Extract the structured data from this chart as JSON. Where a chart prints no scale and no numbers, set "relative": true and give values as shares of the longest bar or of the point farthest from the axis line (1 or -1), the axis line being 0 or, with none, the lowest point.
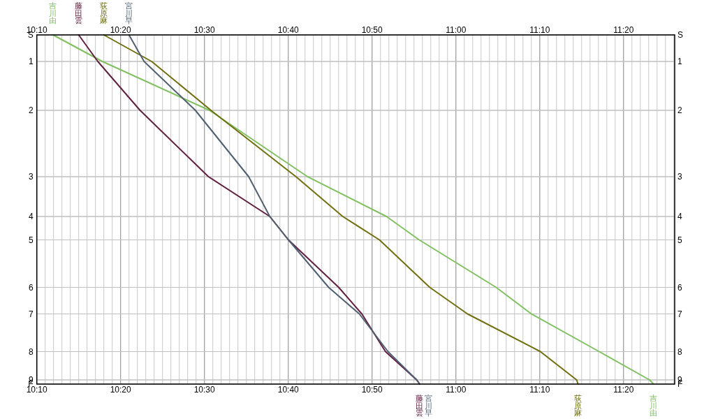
{
  "chart_data": {
    "type": "line",
    "grid": true,
    "relative": true,
    "xlim": [
      10.1667,
      11.435
    ],
    "xticks": [
      {
        "value": 10.1667,
        "label": "10:10"
      },
      {
        "value": 10.3333,
        "label": "10:20"
      },
      {
        "value": 10.5,
        "label": "10:30"
      },
      {
        "value": 10.6667,
        "label": "10:40"
      },
      {
        "value": 10.8333,
        "label": "10:50"
      },
      {
        "value": 11,
        "label": "11:00"
      },
      {
        "value": 11.1667,
        "label": "11:10"
      },
      {
        "value": 11.3333,
        "label": "11:20"
      }
    ],
    "x2lim": [
      10.1667,
      11.435
    ],
    "x2ticks": [
      {
        "value": 10.1667,
        "label": "10:10"
      },
      {
        "value": 10.3333,
        "label": "10:20"
      },
      {
        "value": 10.5,
        "label": "10:30"
      },
      {
        "value": 10.6667,
        "label": "10:40"
      },
      {
        "value": 10.8333,
        "label": "10:50"
      },
      {
        "value": 11,
        "label": "11:00"
      },
      {
        "value": 11.1667,
        "label": "11:10"
      },
      {
        "value": 11.3333,
        "label": "11:20"
      }
    ],
    "annotations": [
      "S",
      "1",
      "2",
      "3",
      "4",
      "5",
      "6",
      "7",
      "8",
      "9",
      "F",
      "S",
      "1",
      "2",
      "3",
      "4",
      "5",
      "6",
      "7",
      "8",
      "9",
      "F"
    ],
    "series": [
      {
        "name": "吉川由",
        "color": "#80c060",
        "x": [
          10.199,
          10.297,
          10.51,
          10.705,
          10.862,
          10.927,
          11.08,
          11.15,
          11.285,
          11.385,
          11.393
        ],
        "values": [
          0,
          -0.076,
          -0.216,
          -0.406,
          -0.52,
          -0.587,
          -0.723,
          -0.799,
          -0.907,
          -0.988,
          -1
        ]
      },
      {
        "name": "藤田雲",
        "color": "#602040",
        "x": [
          10.25,
          10.288,
          10.372,
          10.508,
          10.63,
          10.667,
          10.767,
          10.813,
          10.86,
          10.922,
          10.928
        ],
        "values": [
          0,
          -0.076,
          -0.216,
          -0.406,
          -0.52,
          -0.587,
          -0.723,
          -0.799,
          -0.907,
          -0.988,
          -1
        ]
      },
      {
        "name": "荻原麻",
        "color": "#707010",
        "x": [
          10.3,
          10.395,
          10.513,
          10.682,
          10.775,
          10.848,
          10.948,
          11.023,
          11.168,
          11.24,
          11.243
        ],
        "values": [
          0,
          -0.076,
          -0.216,
          -0.406,
          -0.52,
          -0.587,
          -0.723,
          -0.799,
          -0.907,
          -0.988,
          -1
        ]
      },
      {
        "name": "宮川早",
        "color": "#506070",
        "x": [
          10.35,
          10.38,
          10.482,
          10.588,
          10.63,
          10.667,
          10.747,
          10.808,
          10.865,
          10.922,
          10.928
        ],
        "values": [
          0,
          -0.076,
          -0.216,
          -0.406,
          -0.52,
          -0.587,
          -0.723,
          -0.799,
          -0.907,
          -0.988,
          -1
        ]
      }
    ]
  }
}
